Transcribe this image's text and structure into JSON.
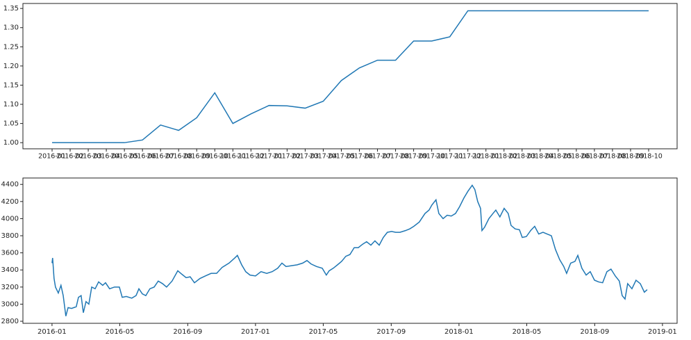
{
  "chart_data": [
    {
      "type": "line",
      "color": "#1f77b4",
      "categories": [
        "2016-01",
        "2016-02",
        "2016-03",
        "2016-04",
        "2016-05",
        "2016-06",
        "2016-07",
        "2016-08",
        "2016-09",
        "2016-10",
        "2016-11",
        "2016-12",
        "2017-01",
        "2017-02",
        "2017-03",
        "2017-04",
        "2017-05",
        "2017-06",
        "2017-07",
        "2017-08",
        "2017-09",
        "2017-10",
        "2017-11",
        "2017-12",
        "2018-01",
        "2018-02",
        "2018-03",
        "2018-04",
        "2018-05",
        "2018-06",
        "2018-07",
        "2018-08",
        "2018-09",
        "2018-10"
      ],
      "values": [
        1.0,
        1.0,
        1.0,
        1.0,
        1.0,
        1.007,
        1.046,
        1.032,
        1.065,
        1.13,
        1.05,
        1.075,
        1.097,
        1.096,
        1.09,
        1.108,
        1.162,
        1.195,
        1.215,
        1.215,
        1.265,
        1.265,
        1.276,
        1.344,
        1.344,
        1.344,
        1.344,
        1.344,
        1.344,
        1.344,
        1.344,
        1.344,
        1.344,
        1.344
      ],
      "ylim": [
        0.984,
        1.363
      ],
      "yticks": [
        {
          "value": 1.0,
          "label": "1.00"
        },
        {
          "value": 1.05,
          "label": "1.05"
        },
        {
          "value": 1.1,
          "label": "1.10"
        },
        {
          "value": 1.15,
          "label": "1.15"
        },
        {
          "value": 1.2,
          "label": "1.20"
        },
        {
          "value": 1.25,
          "label": "1.25"
        },
        {
          "value": 1.3,
          "label": "1.30"
        },
        {
          "value": 1.35,
          "label": "1.35"
        }
      ]
    },
    {
      "type": "line",
      "color": "#1f77b4",
      "x": [
        2016.0,
        2016.003,
        2016.01,
        2016.017,
        2016.031,
        2016.044,
        2016.055,
        2016.068,
        2016.079,
        2016.096,
        2016.119,
        2016.13,
        2016.143,
        2016.154,
        2016.167,
        2016.181,
        2016.195,
        2016.212,
        2016.229,
        2016.249,
        2016.263,
        2016.283,
        2016.307,
        2016.331,
        2016.345,
        2016.365,
        2016.392,
        2016.413,
        2016.427,
        2016.444,
        2016.461,
        2016.481,
        2016.502,
        2016.522,
        2016.543,
        2016.563,
        2016.59,
        2016.618,
        2016.638,
        2016.659,
        2016.679,
        2016.7,
        2016.727,
        2016.754,
        2016.782,
        2016.809,
        2016.836,
        2016.87,
        2016.898,
        2016.911,
        2016.932,
        2016.952,
        2016.973,
        2017.0,
        2017.027,
        2017.055,
        2017.082,
        2017.109,
        2017.13,
        2017.15,
        2017.177,
        2017.205,
        2017.232,
        2017.253,
        2017.273,
        2017.3,
        2017.328,
        2017.348,
        2017.362,
        2017.382,
        2017.403,
        2017.423,
        2017.444,
        2017.464,
        2017.485,
        2017.505,
        2017.526,
        2017.546,
        2017.567,
        2017.587,
        2017.608,
        2017.628,
        2017.648,
        2017.669,
        2017.689,
        2017.71,
        2017.737,
        2017.758,
        2017.778,
        2017.805,
        2017.833,
        2017.853,
        2017.867,
        2017.887,
        2017.901,
        2017.922,
        2017.942,
        2017.962,
        2017.983,
        2018.003,
        2018.024,
        2018.044,
        2018.065,
        2018.078,
        2018.092,
        2018.106,
        2018.113,
        2018.126,
        2018.147,
        2018.167,
        2018.181,
        2018.201,
        2018.222,
        2018.242,
        2018.256,
        2018.276,
        2018.297,
        2018.311,
        2018.331,
        2018.352,
        2018.372,
        2018.392,
        2018.413,
        2018.433,
        2018.454,
        2018.474,
        2018.495,
        2018.515,
        2018.529,
        2018.549,
        2018.57,
        2018.584,
        2018.604,
        2018.625,
        2018.645,
        2018.666,
        2018.686,
        2018.706,
        2018.727,
        2018.747,
        2018.768,
        2018.788,
        2018.802,
        2018.816,
        2018.829,
        2018.85,
        2018.87,
        2018.891,
        2018.911,
        2018.925
      ],
      "values": [
        3480,
        3540,
        3300,
        3200,
        3130,
        3220,
        3100,
        2860,
        2960,
        2950,
        2970,
        3080,
        3100,
        2900,
        3030,
        3000,
        3200,
        3180,
        3260,
        3220,
        3250,
        3180,
        3200,
        3200,
        3080,
        3090,
        3070,
        3100,
        3180,
        3120,
        3100,
        3180,
        3200,
        3270,
        3240,
        3200,
        3270,
        3390,
        3350,
        3310,
        3320,
        3250,
        3300,
        3330,
        3360,
        3360,
        3430,
        3480,
        3540,
        3570,
        3460,
        3380,
        3340,
        3330,
        3380,
        3360,
        3380,
        3420,
        3480,
        3440,
        3450,
        3460,
        3480,
        3510,
        3470,
        3440,
        3420,
        3340,
        3390,
        3420,
        3460,
        3500,
        3560,
        3580,
        3660,
        3660,
        3700,
        3730,
        3690,
        3740,
        3690,
        3780,
        3840,
        3850,
        3840,
        3840,
        3860,
        3880,
        3910,
        3960,
        4060,
        4100,
        4160,
        4220,
        4060,
        4000,
        4040,
        4030,
        4060,
        4140,
        4240,
        4320,
        4390,
        4340,
        4200,
        4120,
        3860,
        3900,
        4000,
        4060,
        4100,
        4020,
        4120,
        4060,
        3920,
        3880,
        3870,
        3780,
        3790,
        3860,
        3910,
        3820,
        3840,
        3820,
        3800,
        3640,
        3520,
        3440,
        3360,
        3480,
        3500,
        3570,
        3420,
        3340,
        3380,
        3280,
        3260,
        3250,
        3380,
        3410,
        3330,
        3270,
        3100,
        3060,
        3240,
        3180,
        3280,
        3240,
        3140,
        3170
      ],
      "xlim": [
        2015.857,
        2019.072
      ],
      "xticks": [
        {
          "value": 2016.0,
          "label": "2016-01"
        },
        {
          "value": 2016.333,
          "label": "2016-05"
        },
        {
          "value": 2016.667,
          "label": "2016-09"
        },
        {
          "value": 2017.0,
          "label": "2017-01"
        },
        {
          "value": 2017.333,
          "label": "2017-05"
        },
        {
          "value": 2017.667,
          "label": "2017-09"
        },
        {
          "value": 2018.0,
          "label": "2018-01"
        },
        {
          "value": 2018.333,
          "label": "2018-05"
        },
        {
          "value": 2018.667,
          "label": "2018-09"
        },
        {
          "value": 2019.0,
          "label": "2019-01"
        }
      ],
      "ylim": [
        2776,
        4475
      ],
      "yticks": [
        2800,
        3000,
        3200,
        3400,
        3600,
        3800,
        4000,
        4200,
        4400
      ]
    }
  ]
}
